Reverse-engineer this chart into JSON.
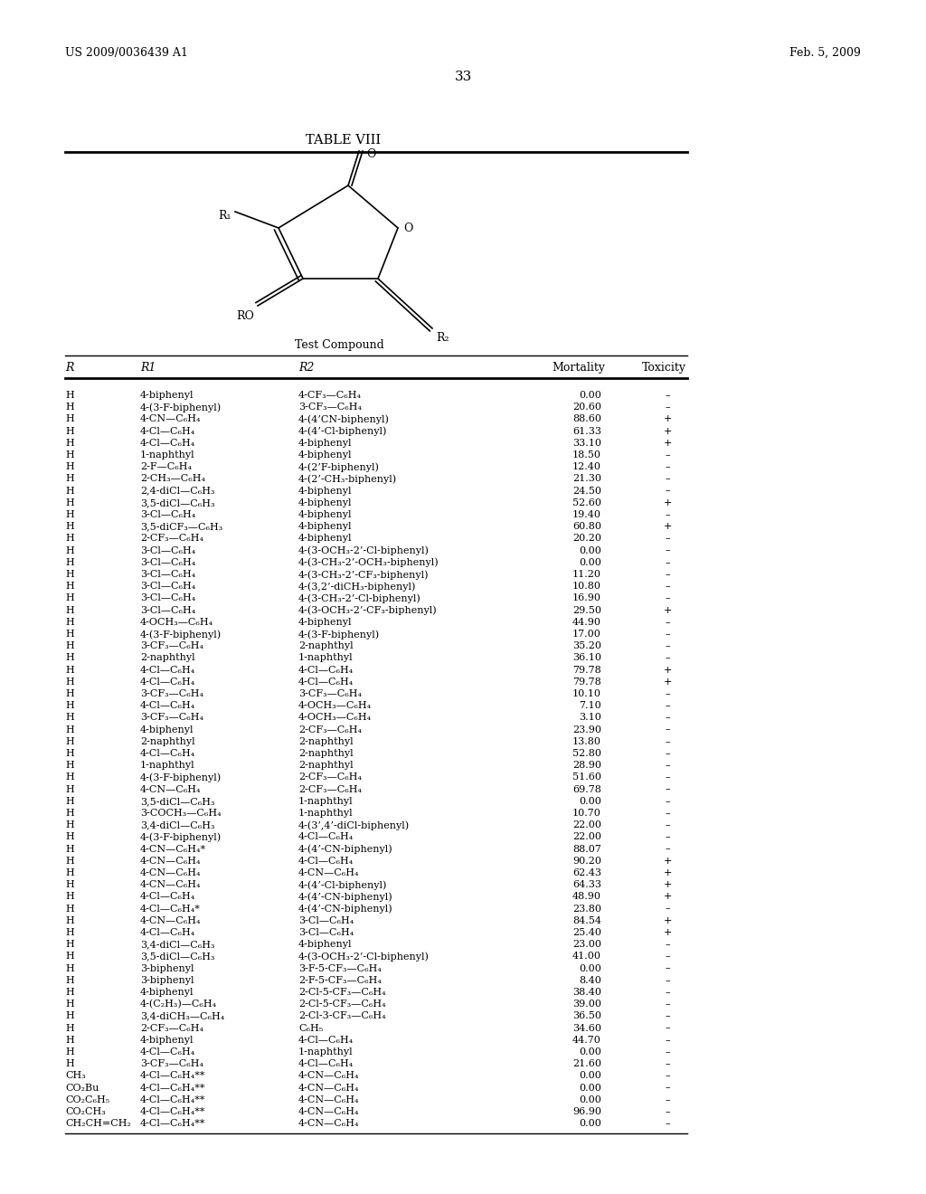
{
  "header_left": "US 2009/0036439 A1",
  "header_right": "Feb. 5, 2009",
  "page_number": "33",
  "table_title": "TABLE VIII",
  "compound_label": "Test Compound",
  "col_headers": [
    "R",
    "R1",
    "R2",
    "Mortality",
    "Toxicity"
  ],
  "rows": [
    [
      "H",
      "4-biphenyl",
      "4-CF₃—C₆H₄",
      "0.00",
      "–"
    ],
    [
      "H",
      "4-(3-F-biphenyl)",
      "3-CF₃—C₆H₄",
      "20.60",
      "–"
    ],
    [
      "H",
      "4-CN—C₆H₄",
      "4-(4’CN-biphenyl)",
      "88.60",
      "+"
    ],
    [
      "H",
      "4-Cl—C₆H₄",
      "4-(4’-Cl-biphenyl)",
      "61.33",
      "+"
    ],
    [
      "H",
      "4-Cl—C₆H₄",
      "4-biphenyl",
      "33.10",
      "+"
    ],
    [
      "H",
      "1-naphthyl",
      "4-biphenyl",
      "18.50",
      "–"
    ],
    [
      "H",
      "2-F—C₆H₄",
      "4-(2’F-biphenyl)",
      "12.40",
      "–"
    ],
    [
      "H",
      "2-CH₃—C₆H₄",
      "4-(2’-CH₃-biphenyl)",
      "21.30",
      "–"
    ],
    [
      "H",
      "2,4-diCl—C₆H₃",
      "4-biphenyl",
      "24.50",
      "–"
    ],
    [
      "H",
      "3,5-diCl—C₆H₃",
      "4-biphenyl",
      "52.60",
      "+"
    ],
    [
      "H",
      "3-Cl—C₆H₄",
      "4-biphenyl",
      "19.40",
      "–"
    ],
    [
      "H",
      "3,5-diCF₃—C₆H₃",
      "4-biphenyl",
      "60.80",
      "+"
    ],
    [
      "H",
      "2-CF₃—C₆H₄",
      "4-biphenyl",
      "20.20",
      "–"
    ],
    [
      "H",
      "3-Cl—C₆H₄",
      "4-(3-OCH₃-2’-Cl-biphenyl)",
      "0.00",
      "–"
    ],
    [
      "H",
      "3-Cl—C₆H₄",
      "4-(3-CH₃-2’-OCH₃-biphenyl)",
      "0.00",
      "–"
    ],
    [
      "H",
      "3-Cl—C₆H₄",
      "4-(3-CH₃-2’-CF₃-biphenyl)",
      "11.20",
      "–"
    ],
    [
      "H",
      "3-Cl—C₆H₄",
      "4-(3,2’-diCH₃-biphenyl)",
      "10.80",
      "–"
    ],
    [
      "H",
      "3-Cl—C₆H₄",
      "4-(3-CH₃-2’-Cl-biphenyl)",
      "16.90",
      "–"
    ],
    [
      "H",
      "3-Cl—C₆H₄",
      "4-(3-OCH₃-2’-CF₃-biphenyl)",
      "29.50",
      "+"
    ],
    [
      "H",
      "4-OCH₃—C₆H₄",
      "4-biphenyl",
      "44.90",
      "–"
    ],
    [
      "H",
      "4-(3-F-biphenyl)",
      "4-(3-F-biphenyl)",
      "17.00",
      "–"
    ],
    [
      "H",
      "3-CF₃—C₆H₄",
      "2-naphthyl",
      "35.20",
      "–"
    ],
    [
      "H",
      "2-naphthyl",
      "1-naphthyl",
      "36.10",
      "–"
    ],
    [
      "H",
      "4-Cl—C₆H₄",
      "4-Cl—C₆H₄",
      "79.78",
      "+"
    ],
    [
      "H",
      "4-Cl—C₆H₄",
      "4-Cl—C₆H₄",
      "79.78",
      "+"
    ],
    [
      "H",
      "3-CF₃—C₆H₄",
      "3-CF₃—C₆H₄",
      "10.10",
      "–"
    ],
    [
      "H",
      "4-Cl—C₆H₄",
      "4-OCH₃—C₆H₄",
      "7.10",
      "–"
    ],
    [
      "H",
      "3-CF₃—C₆H₄",
      "4-OCH₃—C₆H₄",
      "3.10",
      "–"
    ],
    [
      "H",
      "4-biphenyl",
      "2-CF₃—C₆H₄",
      "23.90",
      "–"
    ],
    [
      "H",
      "2-naphthyl",
      "2-naphthyl",
      "13.80",
      "–"
    ],
    [
      "H",
      "4-Cl—C₆H₄",
      "2-naphthyl",
      "52.80",
      "–"
    ],
    [
      "H",
      "1-naphthyl",
      "2-naphthyl",
      "28.90",
      "–"
    ],
    [
      "H",
      "4-(3-F-biphenyl)",
      "2-CF₃—C₆H₄",
      "51.60",
      "–"
    ],
    [
      "H",
      "4-CN—C₆H₄",
      "2-CF₃—C₆H₄",
      "69.78",
      "–"
    ],
    [
      "H",
      "3,5-diCl—C₆H₃",
      "1-naphthyl",
      "0.00",
      "–"
    ],
    [
      "H",
      "3-COCH₃—C₆H₄",
      "1-naphthyl",
      "10.70",
      "–"
    ],
    [
      "H",
      "3,4-diCl—C₆H₃",
      "4-(3’,4’-diCl-biphenyl)",
      "22.00",
      "–"
    ],
    [
      "H",
      "4-(3-F-biphenyl)",
      "4-Cl—C₆H₄",
      "22.00",
      "–"
    ],
    [
      "H",
      "4-CN—C₆H₄*",
      "4-(4’-CN-biphenyl)",
      "88.07",
      "–"
    ],
    [
      "H",
      "4-CN—C₆H₄",
      "4-Cl—C₆H₄",
      "90.20",
      "+"
    ],
    [
      "H",
      "4-CN—C₆H₄",
      "4-CN—C₆H₄",
      "62.43",
      "+"
    ],
    [
      "H",
      "4-CN—C₆H₄",
      "4-(4’-Cl-biphenyl)",
      "64.33",
      "+"
    ],
    [
      "H",
      "4-Cl—C₆H₄",
      "4-(4’-CN-biphenyl)",
      "48.90",
      "+"
    ],
    [
      "H",
      "4-Cl—C₆H₄*",
      "4-(4’-CN-biphenyl)",
      "23.80",
      "–"
    ],
    [
      "H",
      "4-CN—C₆H₄",
      "3-Cl—C₆H₄",
      "84.54",
      "+"
    ],
    [
      "H",
      "4-Cl—C₆H₄",
      "3-Cl—C₆H₄",
      "25.40",
      "+"
    ],
    [
      "H",
      "3,4-diCl—C₆H₃",
      "4-biphenyl",
      "23.00",
      "–"
    ],
    [
      "H",
      "3,5-diCl—C₆H₃",
      "4-(3-OCH₃-2’-Cl-biphenyl)",
      "41.00",
      "–"
    ],
    [
      "H",
      "3-biphenyl",
      "3-F-5-CF₃—C₆H₄",
      "0.00",
      "–"
    ],
    [
      "H",
      "3-biphenyl",
      "2-F-5-CF₃—C₆H₄",
      "8.40",
      "–"
    ],
    [
      "H",
      "4-biphenyl",
      "2-Cl-5-CF₃—C₆H₄",
      "38.40",
      "–"
    ],
    [
      "H",
      "4-(C₂H₃)—C₆H₄",
      "2-Cl-5-CF₃—C₆H₄",
      "39.00",
      "–"
    ],
    [
      "H",
      "3,4-diCH₃—C₆H₄",
      "2-Cl-3-CF₃—C₆H₄",
      "36.50",
      "–"
    ],
    [
      "H",
      "2-CF₃—C₆H₄",
      "C₆H₅",
      "34.60",
      "–"
    ],
    [
      "H",
      "4-biphenyl",
      "4-Cl—C₆H₄",
      "44.70",
      "–"
    ],
    [
      "H",
      "4-Cl—C₆H₄",
      "1-naphthyl",
      "0.00",
      "–"
    ],
    [
      "H",
      "3-CF₃—C₆H₄",
      "4-Cl—C₆H₄",
      "21.60",
      "–"
    ],
    [
      "CH₃",
      "4-Cl—C₆H₄**",
      "4-CN—C₆H₄",
      "0.00",
      "–"
    ],
    [
      "CO₂Bu",
      "4-Cl—C₆H₄**",
      "4-CN—C₆H₄",
      "0.00",
      "–"
    ],
    [
      "CO₂C₆H₅",
      "4-Cl—C₆H₄**",
      "4-CN—C₆H₄",
      "0.00",
      "–"
    ],
    [
      "CO₂CH₃",
      "4-Cl—C₆H₄**",
      "4-CN—C₆H₄",
      "96.90",
      "–"
    ],
    [
      "CH₂CH=CH₂",
      "4-Cl—C₆H₄**",
      "4-CN—C₆H₄",
      "0.00",
      "–"
    ]
  ]
}
